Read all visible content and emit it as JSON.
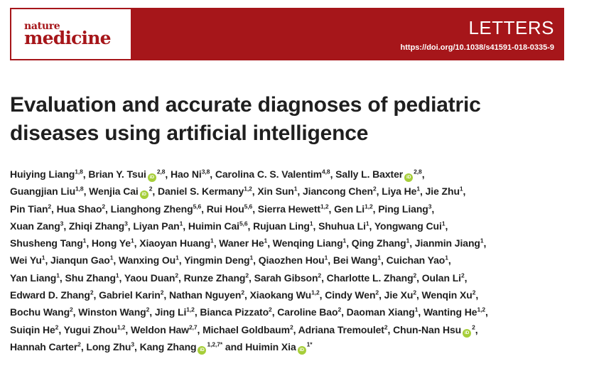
{
  "header": {
    "logo_top": "nature",
    "logo_bottom": "medicine",
    "section": "LETTERS",
    "doi": "https://doi.org/10.1038/s41591-018-0335-9",
    "brand_color": "#a6161a"
  },
  "title_lines": [
    "Evaluation and accurate diagnoses of pediatric",
    "diseases using artificial intelligence"
  ],
  "orcid_icon_label": "iD",
  "author_lines": [
    [
      {
        "name": "Huiying Liang",
        "aff": "1,8"
      },
      {
        "name": "Brian Y. Tsui",
        "orcid": true,
        "aff": "2,8"
      },
      {
        "name": "Hao Ni",
        "aff": "3,8"
      },
      {
        "name": "Carolina C. S. Valentim",
        "aff": "4,8"
      },
      {
        "name": "Sally L. Baxter",
        "orcid": true,
        "aff": "2,8"
      }
    ],
    [
      {
        "name": "Guangjian Liu",
        "aff": "1,8"
      },
      {
        "name": "Wenjia Cai",
        "orcid": true,
        "aff": "2"
      },
      {
        "name": "Daniel S. Kermany",
        "aff": "1,2"
      },
      {
        "name": "Xin Sun",
        "aff": "1"
      },
      {
        "name": "Jiancong Chen",
        "aff": "2"
      },
      {
        "name": "Liya He",
        "aff": "1"
      },
      {
        "name": "Jie Zhu",
        "aff": "1"
      }
    ],
    [
      {
        "name": "Pin Tian",
        "aff": "2"
      },
      {
        "name": "Hua Shao",
        "aff": "2"
      },
      {
        "name": "Lianghong Zheng",
        "aff": "5,6"
      },
      {
        "name": "Rui Hou",
        "aff": "5,6"
      },
      {
        "name": "Sierra Hewett",
        "aff": "1,2"
      },
      {
        "name": "Gen Li",
        "aff": "1,2"
      },
      {
        "name": "Ping Liang",
        "aff": "3"
      }
    ],
    [
      {
        "name": "Xuan Zang",
        "aff": "3"
      },
      {
        "name": "Zhiqi Zhang",
        "aff": "3"
      },
      {
        "name": "Liyan Pan",
        "aff": "1"
      },
      {
        "name": "Huimin Cai",
        "aff": "5,6"
      },
      {
        "name": "Rujuan Ling",
        "aff": "1"
      },
      {
        "name": "Shuhua Li",
        "aff": "1"
      },
      {
        "name": "Yongwang Cui",
        "aff": "1"
      }
    ],
    [
      {
        "name": "Shusheng Tang",
        "aff": "1"
      },
      {
        "name": "Hong Ye",
        "aff": "1"
      },
      {
        "name": "Xiaoyan Huang",
        "aff": "1"
      },
      {
        "name": "Waner He",
        "aff": "1"
      },
      {
        "name": "Wenqing Liang",
        "aff": "1"
      },
      {
        "name": "Qing Zhang",
        "aff": "1"
      },
      {
        "name": "Jianmin Jiang",
        "aff": "1"
      }
    ],
    [
      {
        "name": "Wei Yu",
        "aff": "1"
      },
      {
        "name": "Jianqun Gao",
        "aff": "1"
      },
      {
        "name": "Wanxing Ou",
        "aff": "1"
      },
      {
        "name": "Yingmin Deng",
        "aff": "1"
      },
      {
        "name": "Qiaozhen Hou",
        "aff": "1"
      },
      {
        "name": "Bei Wang",
        "aff": "1"
      },
      {
        "name": "Cuichan Yao",
        "aff": "1"
      }
    ],
    [
      {
        "name": "Yan Liang",
        "aff": "1"
      },
      {
        "name": "Shu Zhang",
        "aff": "1"
      },
      {
        "name": "Yaou Duan",
        "aff": "2"
      },
      {
        "name": "Runze Zhang",
        "aff": "2"
      },
      {
        "name": "Sarah Gibson",
        "aff": "2"
      },
      {
        "name": "Charlotte L. Zhang",
        "aff": "2"
      },
      {
        "name": "Oulan Li",
        "aff": "2"
      }
    ],
    [
      {
        "name": "Edward D. Zhang",
        "aff": "2"
      },
      {
        "name": "Gabriel Karin",
        "aff": "2"
      },
      {
        "name": "Nathan Nguyen",
        "aff": "2"
      },
      {
        "name": "Xiaokang Wu",
        "aff": "1,2"
      },
      {
        "name": "Cindy Wen",
        "aff": "2"
      },
      {
        "name": "Jie Xu",
        "aff": "2"
      },
      {
        "name": "Wenqin Xu",
        "aff": "2"
      }
    ],
    [
      {
        "name": "Bochu Wang",
        "aff": "2"
      },
      {
        "name": "Winston Wang",
        "aff": "2"
      },
      {
        "name": "Jing Li",
        "aff": "1,2"
      },
      {
        "name": "Bianca Pizzato",
        "aff": "2"
      },
      {
        "name": "Caroline Bao",
        "aff": "2"
      },
      {
        "name": "Daoman Xiang",
        "aff": "1"
      },
      {
        "name": "Wanting He",
        "aff": "1,2"
      }
    ],
    [
      {
        "name": "Suiqin He",
        "aff": "2"
      },
      {
        "name": "Yugui Zhou",
        "aff": "1,2"
      },
      {
        "name": "Weldon Haw",
        "aff": "2,7"
      },
      {
        "name": "Michael Goldbaum",
        "aff": "2"
      },
      {
        "name": "Adriana Tremoulet",
        "aff": "2"
      },
      {
        "name": "Chun-Nan Hsu",
        "orcid": true,
        "aff": "2"
      }
    ],
    [
      {
        "name": "Hannah Carter",
        "aff": "2"
      },
      {
        "name": "Long Zhu",
        "aff": "3"
      },
      {
        "name": "Kang Zhang",
        "orcid": true,
        "aff": "1,2,7*"
      },
      {
        "name": "Huimin Xia",
        "orcid": true,
        "aff": "1*"
      }
    ]
  ],
  "author_separator": ", ",
  "author_last_joiner": " and "
}
